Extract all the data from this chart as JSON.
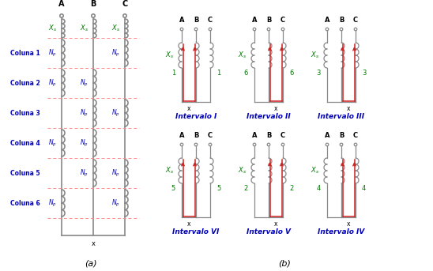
{
  "fig_width": 5.48,
  "fig_height": 3.43,
  "dpi": 100,
  "bg_color": "#ffffff",
  "col_labels": [
    "Coluna 1",
    "Coluna 2",
    "Coluna 3",
    "Coluna 4",
    "Coluna 5",
    "Coluna 6"
  ],
  "sub_a": "(a)",
  "sub_b": "(b)",
  "gray": "#888888",
  "red": "#cc2222",
  "green": "#007700",
  "blue": "#0000bb",
  "dashed": "#ff8888",
  "intervalo_labels": [
    "Intervalo I",
    "Intervalo II",
    "Intervalo III",
    "Intervalo VI",
    "Intervalo V",
    "Intervalo IV"
  ],
  "top_nums": [
    "1",
    "1",
    "6",
    "6",
    "3",
    "3"
  ],
  "bot_nums": [
    "5",
    "5",
    "2",
    "2",
    "4",
    "4"
  ]
}
